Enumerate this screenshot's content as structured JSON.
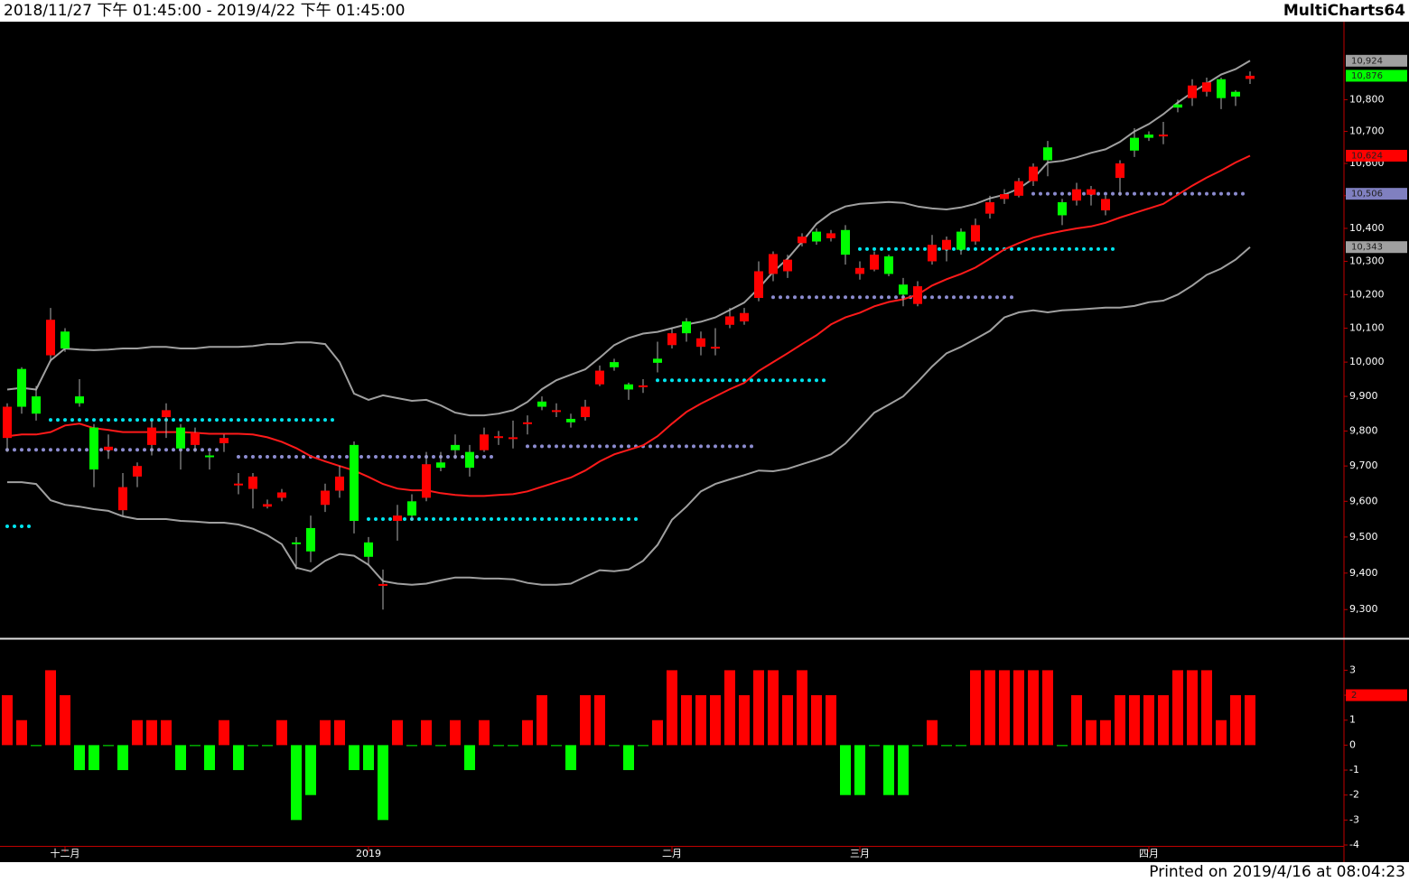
{
  "header": {
    "range": "2018/11/27 下午 01:45:00 - 2019/4/22 下午 01:45:00",
    "brand": "MultiCharts64"
  },
  "footer": "Printed on 2019/4/16 at 08:04:23",
  "chart_data": [
    {
      "type": "candlestick",
      "log": true,
      "ylim": [
        9227,
        11047
      ],
      "yticks": [
        {
          "value": 9300,
          "label": "9,300"
        },
        {
          "value": 9400,
          "label": "9,400"
        },
        {
          "value": 9500,
          "label": "9,500"
        },
        {
          "value": 9600,
          "label": "9,600"
        },
        {
          "value": 9700,
          "label": "9,700"
        },
        {
          "value": 9800,
          "label": "9,800"
        },
        {
          "value": 9900,
          "label": "9,900"
        },
        {
          "value": 10000,
          "label": "10,000"
        },
        {
          "value": 10100,
          "label": "10,100"
        },
        {
          "value": 10200,
          "label": "10,200"
        },
        {
          "value": 10300,
          "label": "10,300"
        },
        {
          "value": 10400,
          "label": "10,400"
        },
        {
          "value": 10500,
          "label": "10,500"
        },
        {
          "value": 10600,
          "label": "10,600"
        },
        {
          "value": 10700,
          "label": "10,700"
        },
        {
          "value": 10800,
          "label": "10,800"
        }
      ],
      "categories": [
        null,
        null,
        null,
        null,
        "十二月",
        null,
        null,
        null,
        null,
        null,
        null,
        null,
        null,
        null,
        null,
        null,
        null,
        null,
        null,
        null,
        null,
        null,
        null,
        null,
        null,
        "2019",
        null,
        null,
        null,
        null,
        null,
        null,
        null,
        null,
        null,
        null,
        null,
        null,
        null,
        null,
        null,
        null,
        null,
        null,
        null,
        null,
        "二月",
        null,
        null,
        null,
        null,
        null,
        null,
        null,
        null,
        null,
        null,
        null,
        null,
        "三月",
        null,
        null,
        null,
        null,
        null,
        null,
        null,
        null,
        null,
        null,
        null,
        null,
        null,
        null,
        null,
        null,
        null,
        null,
        null,
        "四月",
        null,
        null,
        null,
        null,
        null,
        null,
        null
      ],
      "up_color": "#ff0000",
      "down_color": "#00ff00",
      "open": [
        9780,
        9980,
        9900,
        10020,
        10090,
        9900,
        9810,
        9745,
        9575,
        9670,
        9760,
        9840,
        9810,
        9760,
        9730,
        9765,
        9645,
        9635,
        9585,
        9610,
        9485,
        9525,
        9590,
        9630,
        9760,
        9485,
        9365,
        9545,
        9600,
        9610,
        9710,
        9760,
        9740,
        9745,
        9780,
        9778,
        9820,
        9885,
        9855,
        9835,
        9840,
        9935,
        10000,
        9935,
        9930,
        10010,
        10050,
        10120,
        10045,
        10040,
        10110,
        10120,
        10190,
        10262,
        10270,
        10355,
        10390,
        10370,
        10395,
        10262,
        10275,
        10315,
        10230,
        10172,
        10300,
        10335,
        10390,
        10360,
        10445,
        10490,
        10500,
        10545,
        10650,
        10480,
        10485,
        10503,
        10455,
        10555,
        10680,
        10690,
        10685,
        10785,
        10805,
        10825,
        10865,
        10825,
        10866
      ],
      "high": [
        9880,
        9985,
        9930,
        10160,
        10100,
        9950,
        9820,
        9790,
        9680,
        9710,
        9830,
        9880,
        9820,
        9810,
        9740,
        9790,
        9680,
        9680,
        9605,
        9635,
        9500,
        9560,
        9650,
        9700,
        9770,
        9500,
        9410,
        9590,
        9620,
        9740,
        9740,
        9790,
        9760,
        9810,
        9800,
        9830,
        9845,
        9900,
        9880,
        9850,
        9890,
        9990,
        10010,
        9940,
        9950,
        10060,
        10100,
        10130,
        10090,
        10100,
        10160,
        10160,
        10300,
        10330,
        10320,
        10385,
        10400,
        10395,
        10410,
        10300,
        10330,
        10320,
        10250,
        10240,
        10380,
        10375,
        10400,
        10430,
        10500,
        10520,
        10555,
        10600,
        10670,
        10490,
        10540,
        10530,
        10500,
        10610,
        10710,
        10700,
        10730,
        10800,
        10865,
        10870,
        10870,
        10830,
        10890
      ],
      "low": [
        9740,
        9850,
        9830,
        10000,
        10030,
        9870,
        9640,
        9720,
        9560,
        9640,
        9730,
        9780,
        9690,
        9740,
        9690,
        9740,
        9620,
        9580,
        9580,
        9600,
        9410,
        9430,
        9570,
        9610,
        9510,
        9420,
        9300,
        9490,
        9545,
        9600,
        9685,
        9720,
        9670,
        9740,
        9760,
        9750,
        9790,
        9860,
        9840,
        9810,
        9830,
        9930,
        9975,
        9890,
        9910,
        9970,
        10040,
        10060,
        10020,
        10020,
        10100,
        10110,
        10180,
        10240,
        10250,
        10345,
        10350,
        10360,
        10290,
        10245,
        10270,
        10255,
        10165,
        10165,
        10290,
        10300,
        10320,
        10350,
        10430,
        10475,
        10495,
        10530,
        10560,
        10410,
        10470,
        10470,
        10440,
        10500,
        10620,
        10670,
        10660,
        10760,
        10780,
        10810,
        10770,
        10780,
        10850
      ],
      "close": [
        9870,
        9870,
        9850,
        10125,
        10040,
        9880,
        9690,
        9755,
        9640,
        9700,
        9810,
        9860,
        9750,
        9795,
        9725,
        9780,
        9650,
        9670,
        9592,
        9625,
        9480,
        9460,
        9630,
        9670,
        9545,
        9445,
        9370,
        9560,
        9560,
        9705,
        9695,
        9745,
        9695,
        9790,
        9785,
        9782,
        9825,
        9870,
        9860,
        9825,
        9870,
        9975,
        9985,
        9920,
        9932,
        9998,
        10085,
        10085,
        10070,
        10045,
        10135,
        10145,
        10270,
        10322,
        10305,
        10375,
        10360,
        10385,
        10320,
        10280,
        10320,
        10262,
        10200,
        10225,
        10350,
        10365,
        10335,
        10410,
        10480,
        10505,
        10545,
        10590,
        10610,
        10440,
        10520,
        10520,
        10490,
        10600,
        10640,
        10680,
        10690,
        10775,
        10845,
        10855,
        10805,
        10810,
        10876
      ],
      "series": [
        {
          "color": "#a0a0a0",
          "values": [
            9920,
            9925,
            9920,
            10005,
            10040,
            10037,
            10035,
            10037,
            10040,
            10040,
            10045,
            10045,
            10040,
            10040,
            10045,
            10045,
            10045,
            10047,
            10053,
            10053,
            10058,
            10058,
            10053,
            10000,
            9908,
            9890,
            9903,
            9895,
            9887,
            9890,
            9874,
            9853,
            9845,
            9845,
            9850,
            9860,
            9884,
            9921,
            9947,
            9963,
            9979,
            10013,
            10050,
            10071,
            10084,
            10089,
            10100,
            10111,
            10119,
            10132,
            10154,
            10176,
            10219,
            10268,
            10308,
            10359,
            10414,
            10447,
            10467,
            10475,
            10478,
            10481,
            10478,
            10467,
            10461,
            10458,
            10464,
            10475,
            10492,
            10503,
            10522,
            10553,
            10603,
            10608,
            10619,
            10633,
            10644,
            10667,
            10700,
            10723,
            10754,
            10791,
            10823,
            10851,
            10880,
            10897,
            10924
          ]
        },
        {
          "color": "#ff1a1a",
          "values": [
            9785,
            9790,
            9790,
            9797,
            9816,
            9821,
            9808,
            9803,
            9797,
            9797,
            9797,
            9797,
            9797,
            9795,
            9792,
            9792,
            9792,
            9790,
            9782,
            9769,
            9751,
            9728,
            9713,
            9700,
            9687,
            9669,
            9649,
            9636,
            9631,
            9631,
            9623,
            9618,
            9615,
            9615,
            9618,
            9620,
            9628,
            9641,
            9654,
            9667,
            9687,
            9713,
            9733,
            9746,
            9759,
            9785,
            9821,
            9855,
            9879,
            9900,
            9921,
            9939,
            9974,
            10000,
            10026,
            10053,
            10079,
            10111,
            10132,
            10146,
            10165,
            10178,
            10186,
            10200,
            10227,
            10246,
            10262,
            10281,
            10308,
            10336,
            10355,
            10372,
            10383,
            10392,
            10400,
            10406,
            10417,
            10433,
            10447,
            10461,
            10475,
            10503,
            10531,
            10556,
            10578,
            10603,
            10624
          ]
        },
        {
          "color": "#a0a0a0",
          "values": [
            9654,
            9654,
            9649,
            9603,
            9590,
            9585,
            9578,
            9573,
            9558,
            9550,
            9550,
            9550,
            9545,
            9543,
            9540,
            9540,
            9535,
            9523,
            9505,
            9480,
            9415,
            9405,
            9434,
            9453,
            9448,
            9423,
            9378,
            9371,
            9368,
            9371,
            9380,
            9388,
            9388,
            9385,
            9385,
            9383,
            9373,
            9368,
            9368,
            9371,
            9390,
            9408,
            9405,
            9410,
            9434,
            9478,
            9548,
            9585,
            9628,
            9649,
            9662,
            9674,
            9687,
            9685,
            9692,
            9705,
            9718,
            9733,
            9764,
            9808,
            9853,
            9876,
            9900,
            9942,
            9987,
            10026,
            10045,
            10068,
            10092,
            10132,
            10147,
            10153,
            10147,
            10153,
            10155,
            10158,
            10161,
            10161,
            10166,
            10177,
            10182,
            10200,
            10227,
            10259,
            10278,
            10305,
            10343
          ]
        }
      ],
      "levels": [
        {
          "value": 9530,
          "from": 0,
          "to": 2,
          "color": "#00e5ee"
        },
        {
          "value": 9746,
          "from": 0,
          "to": 15,
          "color": "#8c8cd0"
        },
        {
          "value": 9832,
          "from": 3,
          "to": 23,
          "color": "#00e5ee"
        },
        {
          "value": 9726,
          "from": 16,
          "to": 34,
          "color": "#8c8cd0"
        },
        {
          "value": 9550,
          "from": 25,
          "to": 44,
          "color": "#00e5ee"
        },
        {
          "value": 9756,
          "from": 36,
          "to": 52,
          "color": "#8c8cd0"
        },
        {
          "value": 9947,
          "from": 45,
          "to": 57,
          "color": "#00e5ee"
        },
        {
          "value": 10192,
          "from": 53,
          "to": 70,
          "color": "#8c8cd0"
        },
        {
          "value": 10337,
          "from": 59,
          "to": 77,
          "color": "#00e5ee"
        },
        {
          "value": 10506,
          "from": 71,
          "to": 86,
          "color": "#8c8cd0"
        }
      ],
      "last_labels": [
        {
          "value": 10924,
          "label": "10,924",
          "color": "#a0a0a0"
        },
        {
          "value": 10876,
          "label": "10,876",
          "color": "#00ff00"
        },
        {
          "value": 10624,
          "label": "10,624",
          "color": "#ff0000"
        },
        {
          "value": 10506,
          "label": "10,506",
          "color": "#8080c0"
        },
        {
          "value": 10343,
          "label": "10,343",
          "color": "#a0a0a0"
        }
      ]
    },
    {
      "type": "bar",
      "ylim": [
        -4,
        4.1
      ],
      "yticks": [
        3,
        2,
        1,
        0,
        -1,
        -2,
        -3,
        -4
      ],
      "up_color": "#ff0000",
      "down_color": "#00ff00",
      "values": [
        2,
        1,
        0,
        3,
        2,
        -1,
        -1,
        0,
        -1,
        1,
        1,
        1,
        -1,
        0,
        -1,
        1,
        -1,
        0,
        0,
        1,
        -3,
        -2,
        1,
        1,
        -1,
        -1,
        -3,
        1,
        0,
        1,
        0,
        1,
        -1,
        1,
        0,
        0,
        1,
        2,
        0,
        -1,
        2,
        2,
        0,
        -1,
        0,
        1,
        3,
        2,
        2,
        2,
        3,
        2,
        3,
        3,
        2,
        3,
        2,
        2,
        -2,
        -2,
        0,
        -2,
        -2,
        0,
        1,
        0,
        0,
        3,
        3,
        3,
        3,
        3,
        3,
        0,
        2,
        1,
        1,
        2,
        2,
        2,
        2,
        3,
        3,
        3,
        1,
        2,
        2
      ],
      "last_label": 2,
      "last_label_color": "#ff0000"
    }
  ]
}
